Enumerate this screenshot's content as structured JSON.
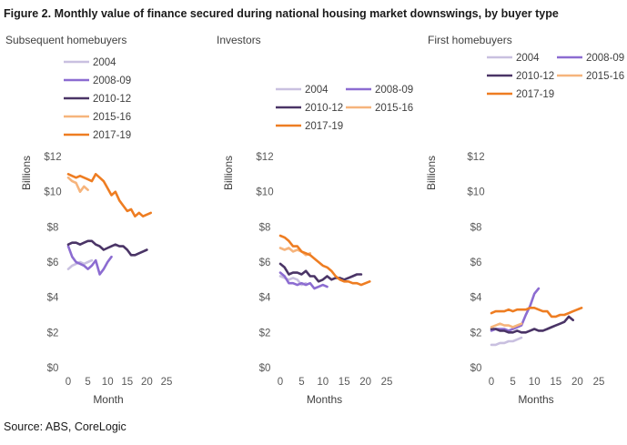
{
  "figure": {
    "title": "Figure 2. Monthly  value of finance secured during  national  housing market downswings,  by buyer type",
    "source": "Source: ABS, CoreLogic"
  },
  "chart_data": [
    {
      "type": "line",
      "title": "Subsequent homebuyers",
      "xlabel": "Month",
      "ylabel": "Billions",
      "xlim": [
        0,
        25
      ],
      "ylim": [
        0,
        12
      ],
      "x_ticks": [
        "0",
        "5",
        "10",
        "15",
        "20",
        "25"
      ],
      "y_ticks": [
        "$0",
        "$2",
        "$4",
        "$6",
        "$8",
        "$10",
        "$12"
      ],
      "legend": [
        "2004",
        "2008-09",
        "2010-12",
        "2015-16",
        "2017-19"
      ],
      "series": [
        {
          "name": "2004",
          "color": "#c9c0e0",
          "x": [
            0,
            1,
            2,
            3,
            4,
            5,
            6
          ],
          "y": [
            5.6,
            5.8,
            5.9,
            6.0,
            5.9,
            6.0,
            6.1
          ]
        },
        {
          "name": "2008-09",
          "color": "#8c6cd1",
          "x": [
            0,
            1,
            2,
            3,
            4,
            5,
            6,
            7,
            8,
            9,
            10,
            11
          ],
          "y": [
            6.9,
            6.3,
            6.0,
            5.9,
            5.8,
            5.6,
            5.8,
            6.1,
            5.3,
            5.6,
            6.0,
            6.3
          ]
        },
        {
          "name": "2010-12",
          "color": "#4a3466",
          "x": [
            0,
            1,
            2,
            3,
            4,
            5,
            6,
            7,
            8,
            9,
            10,
            11,
            12,
            13,
            14,
            15,
            16,
            17,
            18,
            19,
            20
          ],
          "y": [
            7.0,
            7.1,
            7.1,
            7.0,
            7.1,
            7.2,
            7.2,
            7.0,
            6.9,
            6.7,
            6.8,
            6.9,
            7.0,
            6.9,
            6.9,
            6.7,
            6.4,
            6.4,
            6.5,
            6.6,
            6.7
          ]
        },
        {
          "name": "2015-16",
          "color": "#f6b47c",
          "x": [
            0,
            1,
            2,
            3,
            4,
            5
          ],
          "y": [
            10.8,
            10.6,
            10.5,
            10.0,
            10.3,
            10.1
          ]
        },
        {
          "name": "2017-19",
          "color": "#ee7d22",
          "x": [
            0,
            1,
            2,
            3,
            4,
            5,
            6,
            7,
            8,
            9,
            10,
            11,
            12,
            13,
            14,
            15,
            16,
            17,
            18,
            19,
            20,
            21
          ],
          "y": [
            11.0,
            10.9,
            10.8,
            10.9,
            10.8,
            10.7,
            10.6,
            11.0,
            10.8,
            10.6,
            10.2,
            9.8,
            10.0,
            9.5,
            9.2,
            8.9,
            9.0,
            8.6,
            8.8,
            8.6,
            8.7,
            8.8
          ]
        }
      ]
    },
    {
      "type": "line",
      "title": "Investors",
      "xlabel": "Months",
      "ylabel": "Billions",
      "xlim": [
        0,
        25
      ],
      "ylim": [
        0,
        12
      ],
      "x_ticks": [
        "0",
        "5",
        "10",
        "15",
        "20",
        "25"
      ],
      "y_ticks": [
        "$0",
        "$2",
        "$4",
        "$6",
        "$8",
        "$10",
        "$12"
      ],
      "legend": [
        "2004",
        "2008-09",
        "2010-12",
        "2015-16",
        "2017-19"
      ],
      "series": [
        {
          "name": "2004",
          "color": "#c9c0e0",
          "x": [
            0,
            1,
            2,
            3,
            4,
            5,
            6
          ],
          "y": [
            5.2,
            5.1,
            5.0,
            5.1,
            5.0,
            4.7,
            4.8
          ]
        },
        {
          "name": "2008-09",
          "color": "#8c6cd1",
          "x": [
            0,
            1,
            2,
            3,
            4,
            5,
            6,
            7,
            8,
            9,
            10,
            11
          ],
          "y": [
            5.4,
            5.2,
            4.8,
            4.8,
            4.7,
            4.8,
            4.7,
            4.8,
            4.5,
            4.6,
            4.7,
            4.6
          ]
        },
        {
          "name": "2010-12",
          "color": "#4a3466",
          "x": [
            0,
            1,
            2,
            3,
            4,
            5,
            6,
            7,
            8,
            9,
            10,
            11,
            12,
            13,
            14,
            15,
            16,
            17,
            18,
            19
          ],
          "y": [
            5.9,
            5.7,
            5.3,
            5.4,
            5.4,
            5.3,
            5.5,
            5.2,
            5.2,
            4.9,
            5.0,
            5.2,
            5.0,
            5.1,
            5.1,
            5.0,
            5.1,
            5.2,
            5.3,
            5.3
          ]
        },
        {
          "name": "2015-16",
          "color": "#f6b47c",
          "x": [
            0,
            1,
            2,
            3,
            4,
            5,
            6,
            7
          ],
          "y": [
            6.8,
            6.7,
            6.8,
            6.6,
            6.7,
            6.6,
            6.4,
            6.5
          ]
        },
        {
          "name": "2017-19",
          "color": "#ee7d22",
          "x": [
            0,
            1,
            2,
            3,
            4,
            5,
            6,
            7,
            8,
            9,
            10,
            11,
            12,
            13,
            14,
            15,
            16,
            17,
            18,
            19,
            20,
            21
          ],
          "y": [
            7.5,
            7.4,
            7.2,
            6.9,
            6.9,
            6.6,
            6.5,
            6.4,
            6.2,
            6.0,
            5.8,
            5.7,
            5.5,
            5.2,
            5.0,
            4.9,
            4.9,
            4.8,
            4.8,
            4.7,
            4.8,
            4.9
          ]
        }
      ]
    },
    {
      "type": "line",
      "title": "First homebuyers",
      "xlabel": "Months",
      "ylabel": "Billions",
      "xlim": [
        0,
        25
      ],
      "ylim": [
        0,
        12
      ],
      "x_ticks": [
        "0",
        "5",
        "10",
        "15",
        "20",
        "25"
      ],
      "y_ticks": [
        "$0",
        "$2",
        "$4",
        "$6",
        "$8",
        "$10",
        "$12"
      ],
      "legend": [
        "2004",
        "2008-09",
        "2010-12",
        "2015-16",
        "2017-19"
      ],
      "series": [
        {
          "name": "2004",
          "color": "#c9c0e0",
          "x": [
            0,
            1,
            2,
            3,
            4,
            5,
            6,
            7
          ],
          "y": [
            1.3,
            1.3,
            1.4,
            1.4,
            1.5,
            1.5,
            1.6,
            1.7
          ]
        },
        {
          "name": "2008-09",
          "color": "#8c6cd1",
          "x": [
            0,
            1,
            2,
            3,
            4,
            5,
            6,
            7,
            8,
            9,
            10,
            11
          ],
          "y": [
            2.1,
            2.2,
            2.2,
            2.2,
            2.1,
            2.2,
            2.3,
            2.4,
            3.0,
            3.5,
            4.2,
            4.5
          ]
        },
        {
          "name": "2010-12",
          "color": "#4a3466",
          "x": [
            0,
            1,
            2,
            3,
            4,
            5,
            6,
            7,
            8,
            9,
            10,
            11,
            12,
            13,
            14,
            15,
            16,
            17,
            18,
            19
          ],
          "y": [
            2.2,
            2.2,
            2.1,
            2.1,
            2.0,
            2.0,
            2.1,
            2.0,
            2.0,
            2.1,
            2.2,
            2.1,
            2.1,
            2.2,
            2.3,
            2.4,
            2.5,
            2.6,
            2.9,
            2.7
          ]
        },
        {
          "name": "2015-16",
          "color": "#f6b47c",
          "x": [
            0,
            1,
            2,
            3,
            4,
            5,
            6,
            7
          ],
          "y": [
            2.3,
            2.4,
            2.5,
            2.4,
            2.4,
            2.3,
            2.4,
            2.5
          ]
        },
        {
          "name": "2017-19",
          "color": "#ee7d22",
          "x": [
            0,
            1,
            2,
            3,
            4,
            5,
            6,
            7,
            8,
            9,
            10,
            11,
            12,
            13,
            14,
            15,
            16,
            17,
            18,
            19,
            20,
            21
          ],
          "y": [
            3.1,
            3.2,
            3.2,
            3.2,
            3.3,
            3.2,
            3.3,
            3.3,
            3.3,
            3.4,
            3.4,
            3.3,
            3.2,
            3.2,
            2.9,
            2.9,
            3.0,
            3.0,
            3.1,
            3.2,
            3.3,
            3.4
          ]
        }
      ]
    }
  ]
}
